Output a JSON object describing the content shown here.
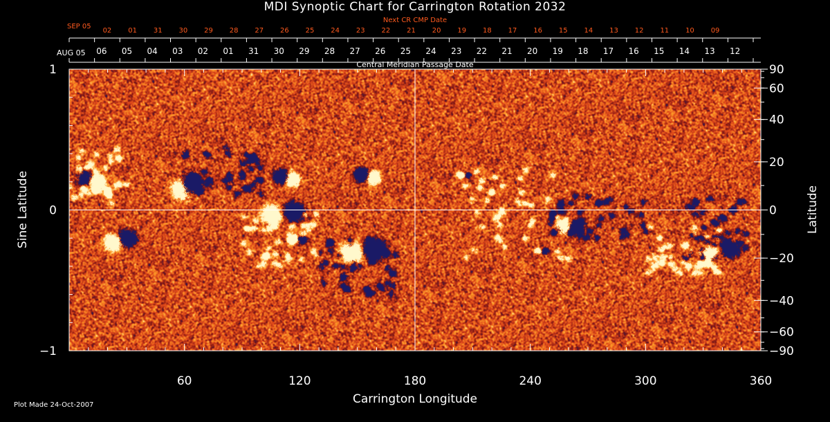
{
  "title": "MDI Synoptic Chart for Carrington Rotation 2032",
  "footer": "Plot Made 24-Oct-2007",
  "top_axes": {
    "next_label": "Next CR CMP Date",
    "next_start": "SEP 05",
    "next_ticks": [
      "02",
      "01",
      "31",
      "30",
      "29",
      "28",
      "27",
      "26",
      "25",
      "24",
      "23",
      "22",
      "21",
      "20",
      "19",
      "18",
      "17",
      "16",
      "15",
      "14",
      "13",
      "12",
      "11",
      "10",
      "09"
    ],
    "cmp_label": "Central Meridian Passage Date",
    "cmp_start": "AUG 05",
    "cmp_ticks": [
      "06",
      "05",
      "04",
      "03",
      "02",
      "01",
      "31",
      "30",
      "29",
      "28",
      "27",
      "26",
      "25",
      "24",
      "23",
      "22",
      "21",
      "20",
      "19",
      "18",
      "17",
      "16",
      "15",
      "14",
      "13",
      "12"
    ]
  },
  "colors": {
    "background": "#000000",
    "field_base": "#e0461a",
    "positive_polarity": "#fff8cc",
    "negative_polarity": "#1a1a66",
    "next_axis_text": "#ff5a1e",
    "axis_text": "#ffffff"
  },
  "chart_data": {
    "type": "heatmap",
    "title": "MDI Synoptic Chart for Carrington Rotation 2032",
    "xlabel": "Carrington Longitude",
    "ylabel": "Sine Latitude",
    "y2label": "Latitude",
    "xlim": [
      0,
      360
    ],
    "ylim": [
      -1,
      1
    ],
    "x_ticks": [
      60,
      120,
      180,
      240,
      300,
      360
    ],
    "y_ticks": [
      "1",
      "0",
      "−1"
    ],
    "y2_ticks": [
      "90",
      "60",
      "40",
      "20",
      "0",
      "−20",
      "−40",
      "−60",
      "−90"
    ],
    "y2_tick_values": [
      90,
      60,
      40,
      20,
      0,
      -20,
      -40,
      -60,
      -90
    ],
    "grid": "central cross at longitude 180 and sine latitude 0",
    "regions": [
      {
        "lon": 12,
        "sinlat": 0.23,
        "pos_dlon": 2.5,
        "pos_dlat": -0.02,
        "neg_dlon": -4,
        "neg_dlat": 0.0,
        "size": 1.0
      },
      {
        "lon": 60,
        "sinlat": 0.17,
        "pos_dlon": -1.5,
        "pos_dlat": -0.02,
        "neg_dlon": 3.5,
        "neg_dlat": 0.02,
        "size": 1.4
      },
      {
        "lon": 113,
        "sinlat": 0.23,
        "pos_dlon": 3,
        "pos_dlat": -0.01,
        "neg_dlon": -3,
        "neg_dlat": 0.01,
        "size": 1.0
      },
      {
        "lon": 155,
        "sinlat": 0.24,
        "pos_dlon": 3,
        "pos_dlat": -0.01,
        "neg_dlon": -2.5,
        "neg_dlat": 0.01,
        "size": 1.0
      },
      {
        "lon": 27,
        "sinlat": -0.21,
        "pos_dlon": -4,
        "pos_dlat": -0.02,
        "neg_dlon": 3,
        "neg_dlat": 0.01,
        "size": 1.2
      },
      {
        "lon": 112,
        "sinlat": -0.03,
        "pos_dlon": -7,
        "pos_dlat": 0.0,
        "neg_dlon": 5,
        "neg_dlat": 0.02,
        "size": 1.3
      },
      {
        "lon": 119,
        "sinlat": -0.21,
        "pos_dlon": -3,
        "pos_dlat": 0.0,
        "neg_dlon": 2,
        "neg_dlat": 0.0,
        "size": 0.6
      },
      {
        "lon": 155,
        "sinlat": -0.28,
        "pos_dlon": -8,
        "pos_dlat": -0.02,
        "neg_dlon": 4,
        "neg_dlat": 0.0,
        "size": 1.5
      },
      {
        "lon": 206,
        "sinlat": 0.25,
        "pos_dlon": -2,
        "pos_dlat": 0.0,
        "neg_dlon": 1.5,
        "neg_dlat": 0.0,
        "size": 0.45
      },
      {
        "lon": 262,
        "sinlat": -0.12,
        "pos_dlon": -5,
        "pos_dlat": 0.0,
        "neg_dlon": 2,
        "neg_dlat": 0.0,
        "size": 1.0
      },
      {
        "lon": 246,
        "sinlat": -0.29,
        "pos_dlon": -2,
        "pos_dlat": 0.0,
        "neg_dlon": 1.5,
        "neg_dlat": 0.0,
        "size": 0.45
      },
      {
        "lon": 342,
        "sinlat": -0.28,
        "pos_dlon": -9,
        "pos_dlat": -0.03,
        "neg_dlon": 2,
        "neg_dlat": 0.0,
        "size": 1.1
      }
    ],
    "diffuse_negative": [
      {
        "lon0": 130,
        "lon1": 170,
        "sinlat0": -0.6,
        "sinlat1": -0.2
      },
      {
        "lon0": 250,
        "lon1": 300,
        "sinlat0": -0.2,
        "sinlat1": 0.1
      },
      {
        "lon0": 320,
        "lon1": 355,
        "sinlat0": -0.35,
        "sinlat1": 0.1
      },
      {
        "lon0": 60,
        "lon1": 100,
        "sinlat0": 0.1,
        "sinlat1": 0.45
      }
    ],
    "diffuse_positive": [
      {
        "lon0": 0,
        "lon1": 30,
        "sinlat0": 0.05,
        "sinlat1": 0.45
      },
      {
        "lon0": 90,
        "lon1": 130,
        "sinlat0": -0.4,
        "sinlat1": 0.0
      },
      {
        "lon0": 200,
        "lon1": 260,
        "sinlat0": -0.35,
        "sinlat1": 0.3
      },
      {
        "lon0": 300,
        "lon1": 340,
        "sinlat0": -0.45,
        "sinlat1": -0.1
      }
    ]
  }
}
